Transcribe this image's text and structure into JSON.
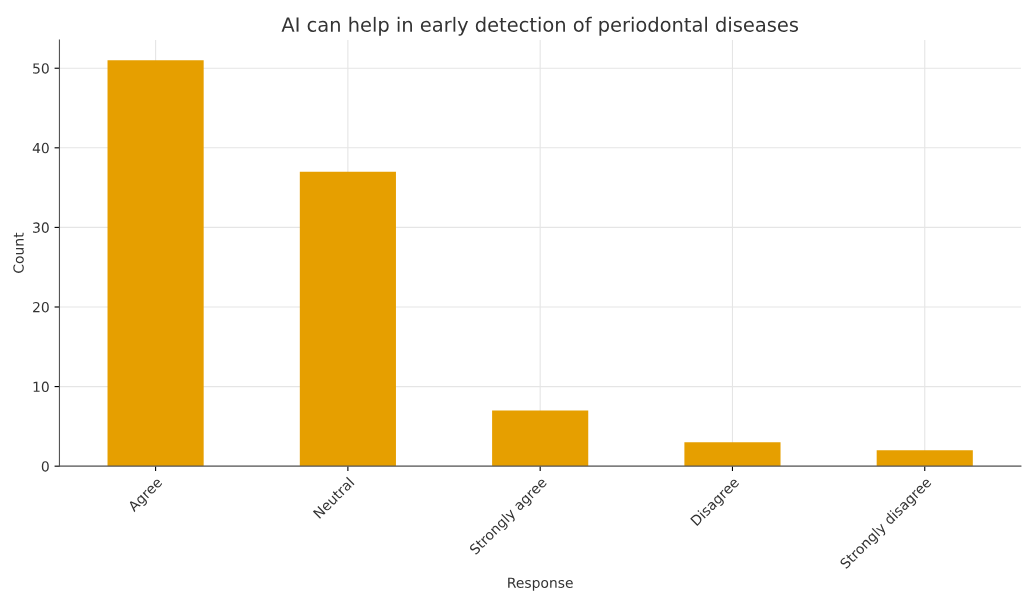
{
  "chart_data": {
    "type": "bar",
    "title": "AI can help in early detection of periodontal diseases",
    "xlabel": "Response",
    "ylabel": "Count",
    "categories": [
      "Agree",
      "Neutral",
      "Strongly agree",
      "Disagree",
      "Strongly disagree"
    ],
    "values": [
      51,
      37,
      7,
      3,
      2
    ],
    "color": "#e69f00",
    "ylim": [
      0,
      53.55
    ],
    "yticks": [
      0,
      10,
      20,
      30,
      40,
      50
    ],
    "grid": true
  }
}
